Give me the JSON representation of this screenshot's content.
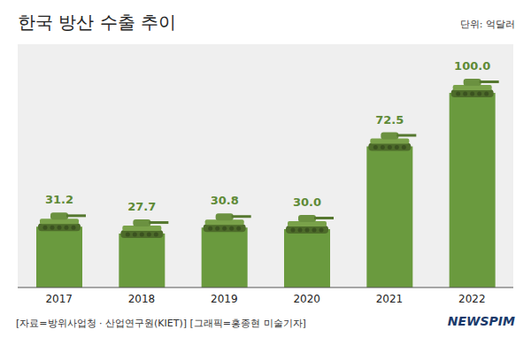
{
  "chart_data": {
    "type": "bar",
    "title": "한국 방산 수출 추이",
    "annotations": {
      "unit": "단위: 억달러",
      "source": "[자료=방위사업청 · 산업연구원(KIET)] [그래픽=홍종현 미술기자]",
      "logo": "NEWSPIM"
    },
    "categories": [
      "2017",
      "2018",
      "2019",
      "2020",
      "2021",
      "2022"
    ],
    "values": [
      31.2,
      27.7,
      30.8,
      30.0,
      72.5,
      100.0
    ],
    "value_labels": [
      "31.2",
      "27.7",
      "30.8",
      "30.0",
      "72.5",
      "100.0"
    ],
    "color": "#6a9a3e",
    "ylim": [
      0,
      125
    ],
    "yticks": [
      0,
      25,
      50,
      75,
      100,
      125
    ],
    "grid": true,
    "data_labels": true,
    "tick_labels": "x"
  }
}
